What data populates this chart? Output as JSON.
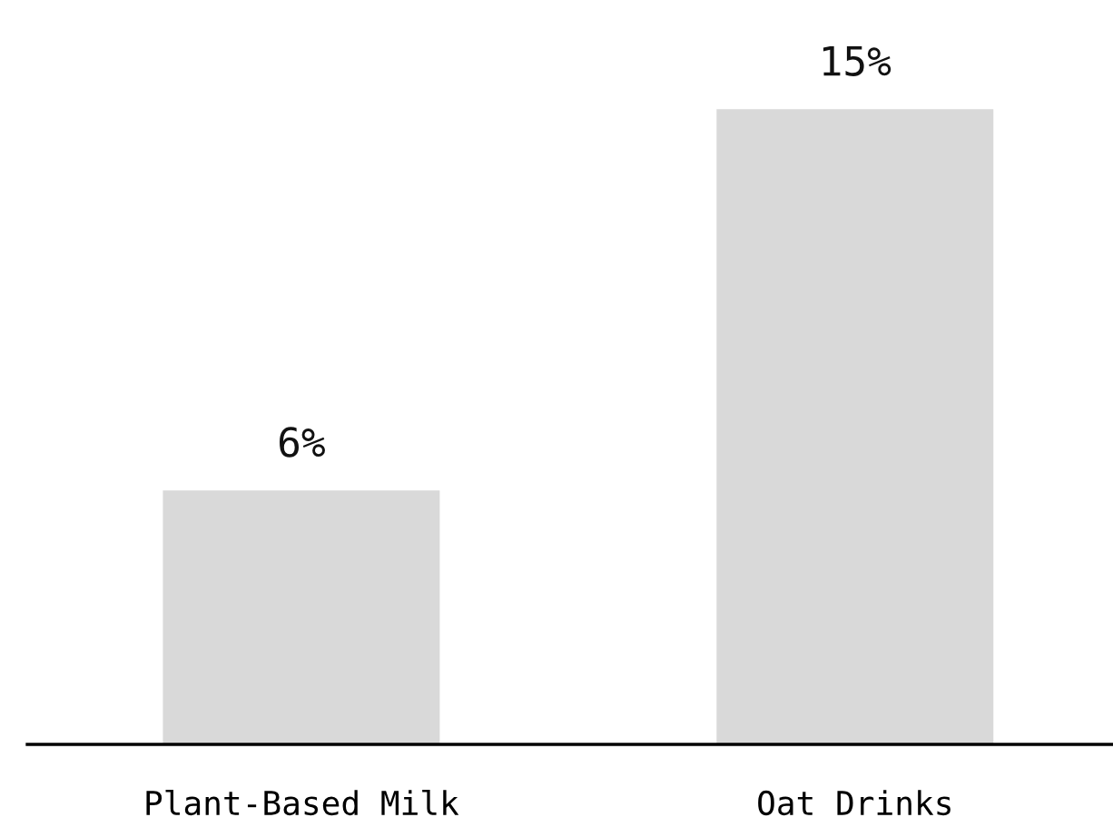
{
  "chart_data": {
    "type": "bar",
    "categories": [
      "Plant-Based Milk",
      "Oat Drinks"
    ],
    "values": [
      6,
      15
    ],
    "value_labels": [
      "6%",
      "15%"
    ],
    "color": "#d9d9d9",
    "grid": false,
    "legend": false
  }
}
